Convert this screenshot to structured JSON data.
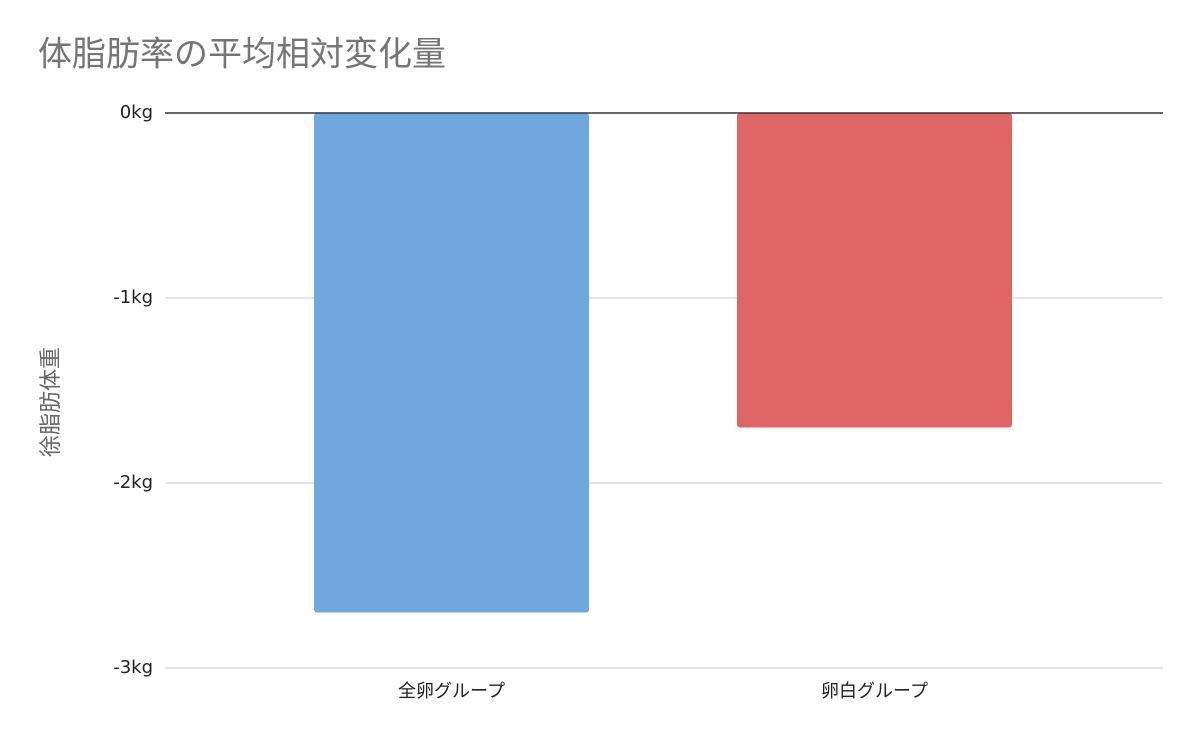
{
  "chart_data": {
    "type": "bar",
    "title": "体脂肪率の平均相対変化量",
    "y_label": "徐脂肪体重",
    "categories": [
      "全卵グループ",
      "卵白グループ"
    ],
    "values": [
      -2.7,
      -1.7
    ],
    "colors": [
      "#6fa8dc",
      "#e06666"
    ],
    "ylim": [
      -3,
      0
    ],
    "yticks": [
      {
        "value": 0,
        "label": "0kg"
      },
      {
        "value": -1,
        "label": "-1kg"
      },
      {
        "value": -2,
        "label": "-2kg"
      },
      {
        "value": -3,
        "label": "-3kg"
      }
    ],
    "grid": true
  }
}
